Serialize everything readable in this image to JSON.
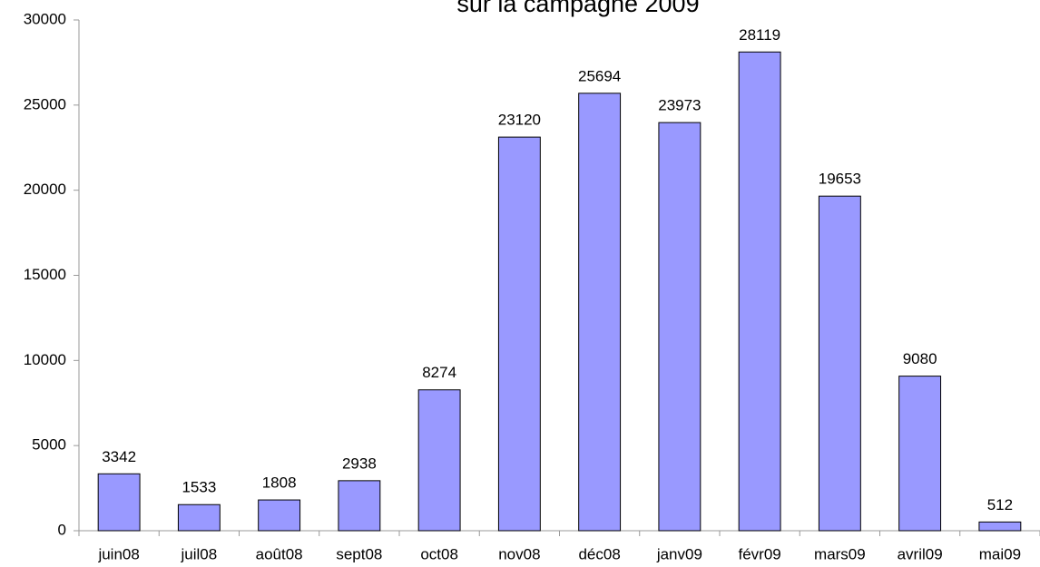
{
  "chart_data": {
    "type": "bar",
    "title": "sur la campagne 2009",
    "categories": [
      "juin08",
      "juil08",
      "août08",
      "sept08",
      "oct08",
      "nov08",
      "déc08",
      "janv09",
      "févr09",
      "mars09",
      "avril09",
      "mai09"
    ],
    "values": [
      3342,
      1533,
      1808,
      2938,
      8274,
      23120,
      25694,
      23973,
      28119,
      19653,
      9080,
      512
    ],
    "color": "#9999ff",
    "ylim": [
      0,
      30000
    ],
    "yticks": [
      0,
      5000,
      10000,
      15000,
      20000,
      25000,
      30000
    ],
    "grid": false
  }
}
